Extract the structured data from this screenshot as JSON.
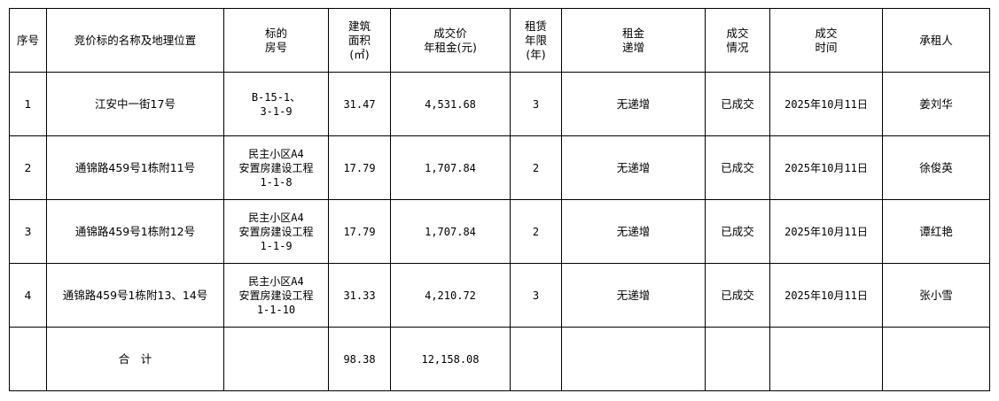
{
  "headers": [
    "序号",
    "竞价标的名称及地理位置",
    "标的\n房号",
    "建筑\n面积\n(㎡)",
    "成交价\n年租金(元)",
    "租赁\n年限\n(年)",
    "租金\n递增",
    "成交\n情况",
    "成交\n时间",
    "承租人"
  ],
  "rows": [
    [
      "1",
      "江安中一街17号",
      "B-15-1、\n3-1-9",
      "31.47",
      "4,531.68",
      "3",
      "无递增",
      "已成交",
      "2025年10月11日",
      "姜刘华"
    ],
    [
      "2",
      "通锦路459号1栋附11号",
      "民主小区A4\n安置房建设工程\n1-1-8",
      "17.79",
      "1,707.84",
      "2",
      "无递增",
      "已成交",
      "2025年10月11日",
      "徐俊英"
    ],
    [
      "3",
      "通锦路459号1栋附12号",
      "民主小区A4\n安置房建设工程\n1-1-9",
      "17.79",
      "1,707.84",
      "2",
      "无递增",
      "已成交",
      "2025年10月11日",
      "谭红艳"
    ],
    [
      "4",
      "通锦路459号1栋附13、14号",
      "民主小区A4\n安置房建设工程\n1-1-10",
      "31.33",
      "4,210.72",
      "3",
      "无递增",
      "已成交",
      "2025年10月11日",
      "张小雪"
    ]
  ],
  "total": {
    "label": "合　计",
    "area": "98.38",
    "rent": "12,158.08"
  }
}
